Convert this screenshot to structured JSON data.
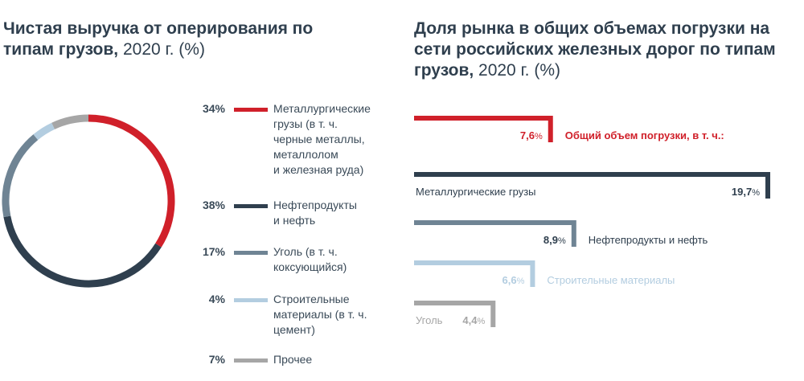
{
  "left_chart": {
    "title_bold": "Чистая выручка от оперирования по типам грузов,",
    "title_rest": " 2020 г. (%)"
  },
  "right_chart": {
    "title_bold": "Доля рынка в общих объемах погрузки на сети российских железных дорог по типам грузов,",
    "title_rest": " 2020 г. (%)"
  },
  "chart_data": [
    {
      "type": "pie",
      "title": "Чистая выручка от оперирования по типам грузов, 2020 г. (%)",
      "labels": [
        "Металлургические грузы (в т. ч. черные металлы, металлолом и железная руда)",
        "Нефтепродукты и нефть",
        "Уголь (в т. ч. коксующийся)",
        "Строительные материалы (в т. ч. цемент)",
        "Прочее"
      ],
      "label_lines": [
        [
          "Металлургические",
          "грузы (в т. ч.",
          "черные металлы,",
          "металлолом",
          "и железная руда)"
        ],
        [
          "Нефтепродукты",
          "и нефть"
        ],
        [
          "Уголь (в т. ч.",
          "коксующийся)"
        ],
        [
          "Строительные",
          "материалы (в т. ч.",
          "цемент)"
        ],
        [
          "Прочее"
        ]
      ],
      "pct_labels": [
        "34%",
        "38%",
        "17%",
        "4%",
        "7%"
      ],
      "values": [
        34,
        38,
        17,
        4,
        7
      ],
      "colors": [
        "#d0202a",
        "#2f3f4e",
        "#6f8494",
        "#b3cde0",
        "#a6a6a6"
      ],
      "legend": "right"
    },
    {
      "type": "bar",
      "orientation": "horizontal",
      "title": "Доля рынка в общих объемах погрузки на сети российских железных дорог по типам грузов, 2020 г. (%)",
      "categories": [
        "Общий объем погрузки, в т. ч.:",
        "Металлургические грузы",
        "Нефтепродукты и нефть",
        "Строительные материалы",
        "Уголь"
      ],
      "values": [
        7.6,
        19.7,
        8.9,
        6.6,
        4.4
      ],
      "value_labels": [
        "7,6",
        "19,7",
        "8,9",
        "6,6",
        "4,4"
      ],
      "unit": "%",
      "colors": [
        "#d0202a",
        "#2f3f4e",
        "#6f8494",
        "#b3cde0",
        "#a6a6a6"
      ],
      "label_colors": [
        "#d0202a",
        "#2f3f4e",
        "#2f3f4e",
        "#b3cde0",
        "#a6a6a6"
      ],
      "label_position": [
        "right",
        "inside",
        "right",
        "right",
        "inside"
      ]
    }
  ]
}
